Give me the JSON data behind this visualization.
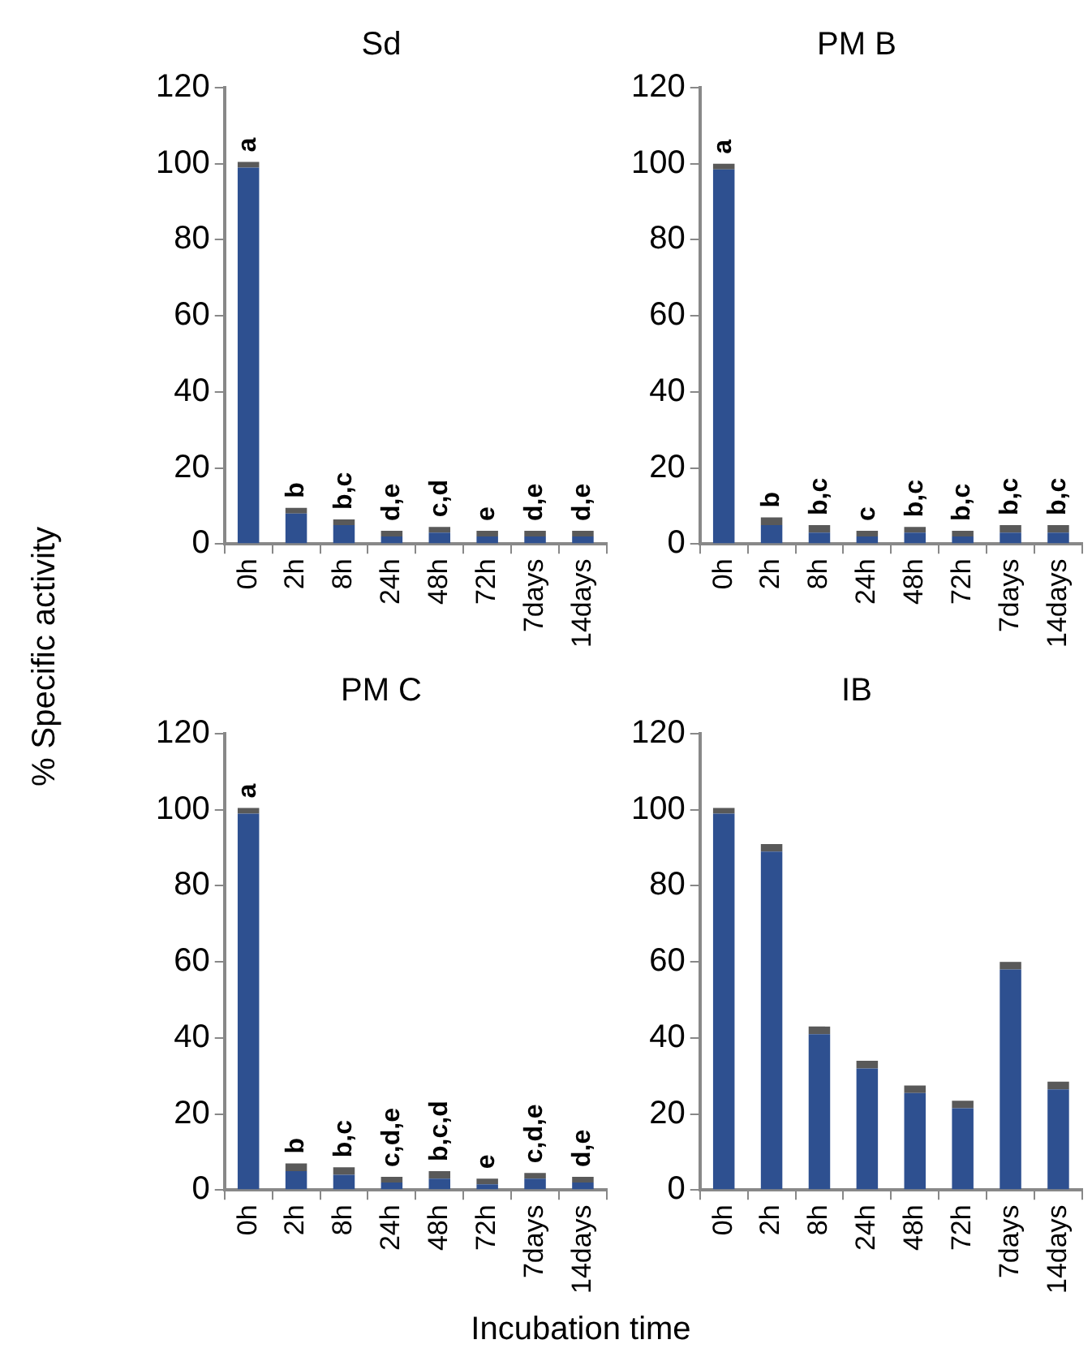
{
  "chart_data": [
    {
      "type": "bar",
      "title": "Sd",
      "ylabel": "% Specific activity",
      "stacked": true,
      "categories": [
        "0h",
        "2h",
        "8h",
        "24h",
        "48h",
        "72h",
        "7days",
        "14days"
      ],
      "ylim": [
        0,
        120
      ],
      "yticks": [
        0,
        20,
        40,
        60,
        80,
        100,
        120
      ],
      "grid": false,
      "legend": false,
      "series": [
        {
          "color": "#2e5090",
          "values": [
            99,
            8,
            5,
            2,
            3,
            2,
            2,
            2
          ]
        },
        {
          "color": "#595959",
          "values": [
            1.5,
            1.5,
            1.5,
            1.5,
            1.5,
            1.5,
            1.5,
            1.5
          ]
        }
      ],
      "annotations": [
        {
          "text": "a",
          "x": "0h",
          "y": 100.5
        },
        {
          "text": "b",
          "x": "2h",
          "y": 9.5
        },
        {
          "text": "b,c",
          "x": "8h",
          "y": 6.5
        },
        {
          "text": "d,e",
          "x": "24h",
          "y": 3.5
        },
        {
          "text": "c,d",
          "x": "48h",
          "y": 4.5
        },
        {
          "text": "e",
          "x": "72h",
          "y": 3.5
        },
        {
          "text": "d,e",
          "x": "7days",
          "y": 3.5
        },
        {
          "text": "d,e",
          "x": "14days",
          "y": 3.5
        }
      ]
    },
    {
      "type": "bar",
      "title": "PM B",
      "stacked": true,
      "categories": [
        "0h",
        "2h",
        "8h",
        "24h",
        "48h",
        "72h",
        "7days",
        "14days"
      ],
      "ylim": [
        0,
        120
      ],
      "yticks": [
        0,
        20,
        40,
        60,
        80,
        100,
        120
      ],
      "grid": false,
      "legend": false,
      "series": [
        {
          "color": "#2e5090",
          "values": [
            98.5,
            5,
            3,
            2,
            3,
            2,
            3,
            3
          ]
        },
        {
          "color": "#595959",
          "values": [
            1.5,
            2,
            2,
            1.5,
            1.5,
            1.5,
            2,
            2
          ]
        }
      ],
      "annotations": [
        {
          "text": "a",
          "x": "0h",
          "y": 100
        },
        {
          "text": "b",
          "x": "2h",
          "y": 7
        },
        {
          "text": "b,c",
          "x": "8h",
          "y": 5
        },
        {
          "text": "c",
          "x": "24h",
          "y": 3.5
        },
        {
          "text": "b,c",
          "x": "48h",
          "y": 4.5
        },
        {
          "text": "b,c",
          "x": "72h",
          "y": 3.5
        },
        {
          "text": "b,c",
          "x": "7days",
          "y": 5
        },
        {
          "text": "b,c",
          "x": "14days",
          "y": 5
        }
      ]
    },
    {
      "type": "bar",
      "title": "PM C",
      "xlabel": "Incubation time",
      "stacked": true,
      "categories": [
        "0h",
        "2h",
        "8h",
        "24h",
        "48h",
        "72h",
        "7days",
        "14days"
      ],
      "ylim": [
        0,
        120
      ],
      "yticks": [
        0,
        20,
        40,
        60,
        80,
        100,
        120
      ],
      "grid": false,
      "legend": false,
      "series": [
        {
          "color": "#2e5090",
          "values": [
            99,
            5,
            4,
            2,
            3,
            1.5,
            3,
            2
          ]
        },
        {
          "color": "#595959",
          "values": [
            1.5,
            2,
            2,
            1.5,
            2,
            1.5,
            1.5,
            1.5
          ]
        }
      ],
      "annotations": [
        {
          "text": "a",
          "x": "0h",
          "y": 100.5
        },
        {
          "text": "b",
          "x": "2h",
          "y": 7
        },
        {
          "text": "b,c",
          "x": "8h",
          "y": 6
        },
        {
          "text": "c,d,e",
          "x": "24h",
          "y": 3.5
        },
        {
          "text": "b,c,d",
          "x": "48h",
          "y": 5
        },
        {
          "text": "e",
          "x": "72h",
          "y": 3
        },
        {
          "text": "c,d,e",
          "x": "7days",
          "y": 4.5
        },
        {
          "text": "d,e",
          "x": "14days",
          "y": 3.5
        }
      ]
    },
    {
      "type": "bar",
      "title": "IB",
      "stacked": true,
      "categories": [
        "0h",
        "2h",
        "8h",
        "24h",
        "48h",
        "72h",
        "7days",
        "14days"
      ],
      "ylim": [
        0,
        120
      ],
      "yticks": [
        0,
        20,
        40,
        60,
        80,
        100,
        120
      ],
      "grid": false,
      "legend": false,
      "series": [
        {
          "color": "#2e5090",
          "values": [
            99,
            89,
            41,
            32,
            25.5,
            21.5,
            58,
            26.5
          ]
        },
        {
          "color": "#595959",
          "values": [
            1.5,
            2,
            2,
            2,
            2,
            2,
            2,
            2
          ]
        }
      ]
    }
  ]
}
